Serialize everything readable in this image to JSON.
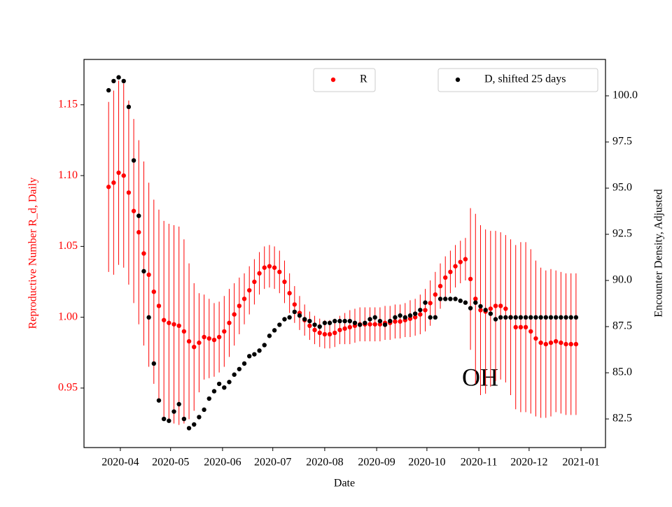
{
  "chart_data": {
    "type": "scatter",
    "xlabel": "Date",
    "ylabel": "Reproductive Number R_d, Daily",
    "y2label": "Encounter Density, Adjusted",
    "annotation": "OH",
    "x": [
      -7,
      -4,
      -1,
      2,
      5,
      8,
      11,
      14,
      17,
      20,
      23,
      26,
      29,
      32,
      35,
      38,
      41,
      44,
      47,
      50,
      53,
      56,
      59,
      62,
      65,
      68,
      71,
      74,
      77,
      80,
      83,
      86,
      89,
      92,
      95,
      98,
      101,
      104,
      107,
      110,
      113,
      116,
      119,
      122,
      125,
      128,
      131,
      134,
      137,
      140,
      143,
      146,
      149,
      152,
      155,
      158,
      161,
      164,
      167,
      170,
      173,
      176,
      179,
      182,
      185,
      188,
      191,
      194,
      197,
      200,
      203,
      206,
      209,
      212,
      215,
      218,
      221,
      224,
      227,
      230,
      233,
      236,
      239,
      242,
      245,
      248,
      251,
      254,
      257,
      260,
      263,
      266,
      269,
      272
    ],
    "xlim": [
      -21.7,
      289.6
    ],
    "xticks": [
      {
        "value": 0,
        "label": "2020-04"
      },
      {
        "value": 30,
        "label": "2020-05"
      },
      {
        "value": 61,
        "label": "2020-06"
      },
      {
        "value": 91,
        "label": "2020-07"
      },
      {
        "value": 122,
        "label": "2020-08"
      },
      {
        "value": 153,
        "label": "2020-09"
      },
      {
        "value": 183,
        "label": "2020-10"
      },
      {
        "value": 214,
        "label": "2020-11"
      },
      {
        "value": 244,
        "label": "2020-12"
      },
      {
        "value": 275,
        "label": "2021-01"
      }
    ],
    "ylim": [
      0.908,
      1.182
    ],
    "yticks": [
      0.95,
      {
        "value": 1.0,
        "label": "1.00"
      },
      1.05,
      {
        "value": 1.1,
        "label": "1.10"
      },
      1.15
    ],
    "y2lim": [
      80.95,
      101.97
    ],
    "y2ticks": [
      82.5,
      {
        "value": 85,
        "label": "85.0"
      },
      87.5,
      {
        "value": 90,
        "label": "90.0"
      },
      92.5,
      {
        "value": 95,
        "label": "95.0"
      },
      97.5,
      {
        "value": 100,
        "label": "100.0"
      }
    ],
    "series": [
      {
        "name": "R",
        "color": "#ff0000",
        "legend": "upper center",
        "values": [
          1.092,
          1.095,
          1.102,
          1.1,
          1.088,
          1.075,
          1.06,
          1.045,
          1.03,
          1.018,
          1.008,
          0.998,
          0.996,
          0.995,
          0.994,
          0.99,
          0.983,
          0.979,
          0.982,
          0.986,
          0.985,
          0.984,
          0.986,
          0.99,
          0.996,
          1.002,
          1.008,
          1.013,
          1.019,
          1.025,
          1.031,
          1.035,
          1.036,
          1.035,
          1.032,
          1.025,
          1.017,
          1.009,
          1.003,
          0.998,
          0.994,
          0.991,
          0.989,
          0.988,
          0.988,
          0.989,
          0.991,
          0.992,
          0.993,
          0.994,
          0.995,
          0.995,
          0.995,
          0.995,
          0.995,
          0.996,
          0.996,
          0.997,
          0.997,
          0.998,
          0.999,
          1.0,
          1.002,
          1.005,
          1.01,
          1.016,
          1.022,
          1.028,
          1.032,
          1.036,
          1.039,
          1.041,
          1.027,
          1.013,
          1.005,
          1.004,
          1.006,
          1.008,
          1.008,
          1.006,
          1.0,
          0.993,
          0.993,
          0.993,
          0.99,
          0.985,
          0.982,
          0.981,
          0.982,
          0.983,
          0.982,
          0.981,
          0.981,
          0.981
        ],
        "errors": [
          0.06,
          0.065,
          0.065,
          0.065,
          0.065,
          0.065,
          0.065,
          0.065,
          0.065,
          0.065,
          0.068,
          0.07,
          0.07,
          0.07,
          0.07,
          0.065,
          0.055,
          0.045,
          0.035,
          0.03,
          0.028,
          0.026,
          0.025,
          0.025,
          0.024,
          0.022,
          0.02,
          0.018,
          0.017,
          0.016,
          0.015,
          0.015,
          0.015,
          0.015,
          0.015,
          0.015,
          0.014,
          0.013,
          0.012,
          0.011,
          0.01,
          0.01,
          0.01,
          0.01,
          0.01,
          0.01,
          0.01,
          0.011,
          0.012,
          0.012,
          0.012,
          0.012,
          0.012,
          0.012,
          0.012,
          0.012,
          0.012,
          0.012,
          0.012,
          0.012,
          0.013,
          0.013,
          0.014,
          0.015,
          0.016,
          0.016,
          0.016,
          0.015,
          0.015,
          0.015,
          0.015,
          0.015,
          0.05,
          0.06,
          0.06,
          0.058,
          0.055,
          0.053,
          0.052,
          0.052,
          0.055,
          0.058,
          0.06,
          0.06,
          0.058,
          0.055,
          0.053,
          0.052,
          0.052,
          0.05,
          0.05,
          0.05,
          0.05,
          0.05
        ]
      },
      {
        "name": "D, shifted 25 days",
        "color": "#000000",
        "axis": "y2",
        "legend": "upper right",
        "values": [
          100.3,
          100.8,
          101.0,
          100.8,
          99.4,
          96.5,
          93.5,
          90.5,
          88.0,
          85.5,
          83.5,
          82.5,
          82.4,
          82.9,
          83.3,
          82.5,
          82.0,
          82.2,
          82.6,
          83.0,
          83.6,
          84.0,
          84.4,
          84.2,
          84.5,
          84.9,
          85.2,
          85.5,
          85.9,
          86.0,
          86.2,
          86.5,
          87.0,
          87.3,
          87.6,
          87.9,
          88.0,
          88.3,
          88.1,
          87.9,
          87.8,
          87.6,
          87.5,
          87.7,
          87.7,
          87.8,
          87.8,
          87.8,
          87.8,
          87.7,
          87.6,
          87.7,
          87.9,
          88.0,
          87.8,
          87.6,
          87.8,
          88.0,
          88.1,
          88.0,
          88.1,
          88.2,
          88.4,
          88.8,
          88.0,
          88.0,
          89.0,
          89.0,
          89.0,
          89.0,
          88.9,
          88.8,
          88.5,
          88.8,
          88.6,
          88.4,
          88.2,
          87.9,
          88.0,
          88.0,
          88.0,
          88.0,
          88.0,
          88.0,
          88.0,
          88.0,
          88.0,
          88.0,
          88.0,
          88.0,
          88.0,
          88.0,
          88.0,
          88.0
        ]
      }
    ]
  }
}
